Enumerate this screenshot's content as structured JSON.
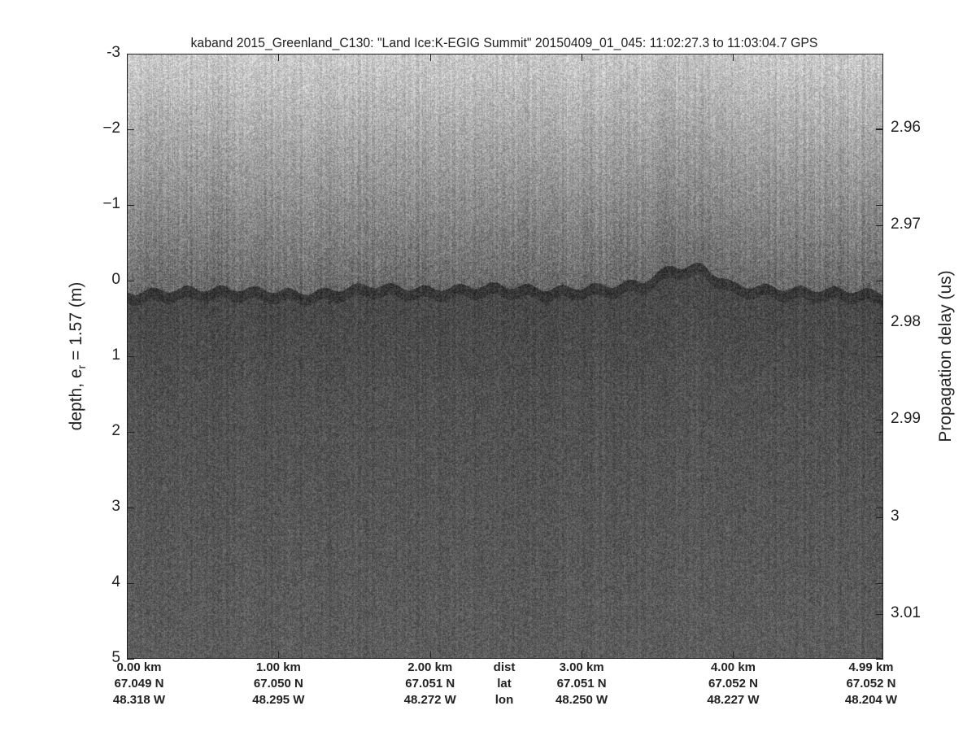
{
  "chart_data": {
    "type": "heatmap",
    "title": "kaband 2015_Greenland_C130: \"Land Ice:K-EGIG Summit\"  20150409_01_045: 11:02:27.3 to 11:03:04.7 GPS",
    "ylabel": "depth, e",
    "ylabel_sub": "r",
    "ylabel_tail": " = 1.57 (m)",
    "ylabel_right": "Propagation delay (us)",
    "ylim": [
      -3,
      5
    ],
    "yticks": [
      "-3",
      "−2",
      "−1",
      "0",
      "1",
      "2",
      "3",
      "4",
      "5"
    ],
    "yticks_values": [
      -3,
      -2,
      -1,
      0,
      1,
      2,
      3,
      4,
      5
    ],
    "y2ticks": [
      "2.96",
      "2.97",
      "2.98",
      "2.99",
      "3",
      "3.01"
    ],
    "y2ticks_values": [
      2.96,
      2.97,
      2.98,
      2.99,
      3.0,
      3.01
    ],
    "xlim_km": [
      0,
      4.99
    ],
    "colormap": "gray",
    "surface_trace": {
      "x_km": [
        0,
        0.4,
        0.8,
        1.2,
        1.6,
        2.0,
        2.4,
        2.8,
        3.2,
        3.4,
        3.6,
        3.8,
        4.0,
        4.4,
        4.8,
        4.99
      ],
      "depth_m": [
        0.15,
        0.1,
        0.1,
        0.15,
        0.05,
        0.1,
        0.05,
        0.1,
        0.05,
        0.0,
        -0.2,
        -0.2,
        0.05,
        0.1,
        0.12,
        0.15
      ]
    },
    "bottom_rows": {
      "label_col": [
        "dist",
        "lat",
        "lon"
      ],
      "cols": [
        {
          "x_km": 0,
          "dist": "0.00 km",
          "lat": "67.049 N",
          "lon": "48.318 W"
        },
        {
          "x_km": 1,
          "dist": "1.00 km",
          "lat": "67.050 N",
          "lon": "48.295 W"
        },
        {
          "x_km": 2,
          "dist": "2.00 km",
          "lat": "67.051 N",
          "lon": "48.272 W"
        },
        {
          "x_km": 3,
          "dist": "3.00 km",
          "lat": "67.051 N",
          "lon": "48.250 W"
        },
        {
          "x_km": 4,
          "dist": "4.00 km",
          "lat": "67.052 N",
          "lon": "48.227 W"
        },
        {
          "x_km": 4.99,
          "dist": "4.99 km",
          "lat": "67.052 N",
          "lon": "48.204 W"
        }
      ]
    }
  }
}
